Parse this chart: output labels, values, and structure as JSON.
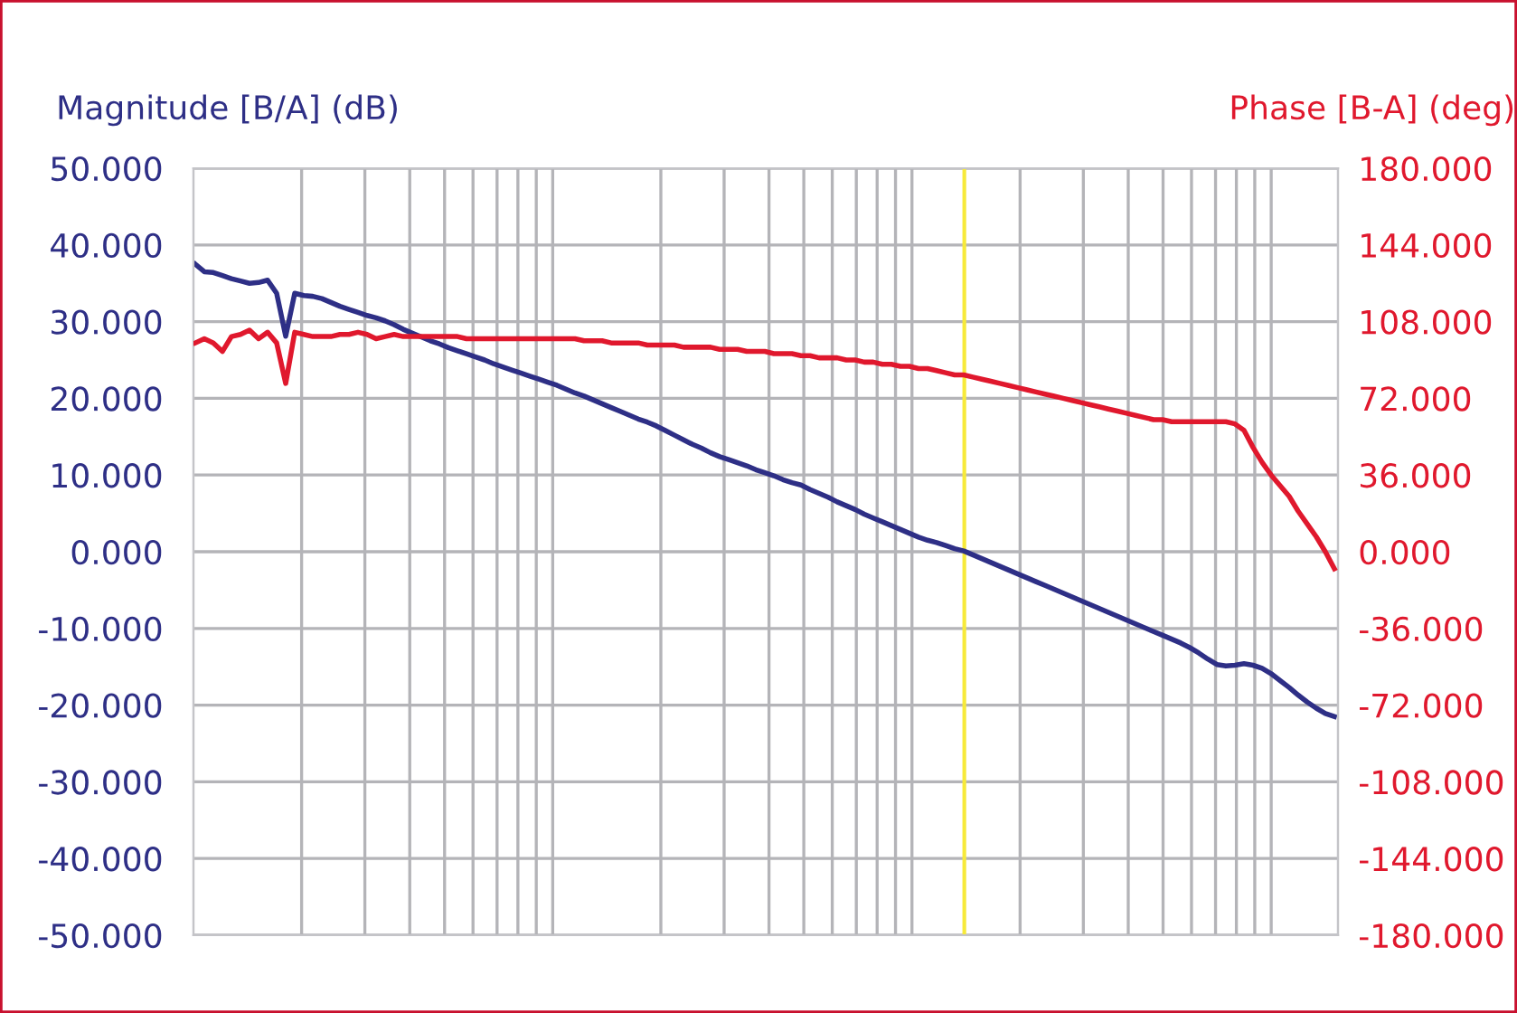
{
  "chart_data": {
    "type": "line",
    "ylabel": "Magnitude [B/A] (dB)",
    "y2label": "Phase [B-A] (deg)",
    "grid": "y",
    "legend": false,
    "categories": [
      null,
      null,
      null,
      null,
      null,
      null,
      null,
      null,
      null,
      null,
      null,
      null,
      null,
      null,
      null,
      null,
      null,
      null,
      null,
      null,
      null,
      null,
      null,
      null,
      null,
      null,
      null,
      null,
      null,
      null,
      null,
      null,
      null,
      null,
      null,
      null,
      null,
      null,
      null,
      null,
      null,
      null,
      null,
      null,
      null,
      null,
      null,
      null,
      null,
      null,
      null,
      null,
      null,
      null,
      null,
      null,
      null,
      null,
      null,
      null,
      null,
      null,
      null,
      null,
      null,
      null,
      null,
      null,
      null,
      null,
      null,
      null,
      null,
      null,
      null,
      null,
      null,
      null,
      null,
      null,
      null,
      null,
      null,
      null,
      null,
      null,
      null,
      null,
      null,
      null,
      null,
      null,
      null,
      null,
      null,
      null,
      null,
      null,
      null,
      null,
      null,
      null,
      null,
      null,
      null,
      null,
      null,
      null,
      null,
      null,
      null,
      null,
      null,
      null,
      null,
      null,
      null,
      null,
      null,
      null,
      null,
      null,
      null,
      null,
      null,
      null,
      null
    ],
    "ylim": [
      -50,
      50
    ],
    "yticks": [
      {
        "value": -50,
        "label": "-50.000"
      },
      {
        "value": -40,
        "label": "-40.000"
      },
      {
        "value": -30,
        "label": "-30.000"
      },
      {
        "value": -20,
        "label": "-20.000"
      },
      {
        "value": -10,
        "label": "-10.000"
      },
      {
        "value": 0,
        "label": "0.000"
      },
      {
        "value": 10,
        "label": "10.000"
      },
      {
        "value": 20,
        "label": "20.000"
      },
      {
        "value": 30,
        "label": "30.000"
      },
      {
        "value": 40,
        "label": "40.000"
      },
      {
        "value": 50,
        "label": "50.000"
      }
    ],
    "y2lim": [
      -180,
      180
    ],
    "y2ticks": [
      {
        "value": -180,
        "label": "-180.000"
      },
      {
        "value": -144,
        "label": "-144.000"
      },
      {
        "value": -108,
        "label": "-108.000"
      },
      {
        "value": -72,
        "label": "-72.000"
      },
      {
        "value": -36,
        "label": "-36.000"
      },
      {
        "value": 0,
        "label": "0.000"
      },
      {
        "value": 36,
        "label": "36.000"
      },
      {
        "value": 72,
        "label": "72.000"
      },
      {
        "value": 108,
        "label": "108.000"
      },
      {
        "value": 144,
        "label": "144.000"
      },
      {
        "value": 180,
        "label": "180.000"
      }
    ],
    "series": [
      {
        "color": "#2e2f86",
        "axis": "y",
        "values": [
          37.5,
          36.5,
          36.4,
          36.0,
          35.6,
          35.3,
          35.0,
          35.1,
          35.4,
          33.7,
          28.1,
          33.7,
          33.4,
          33.3,
          33.0,
          32.5,
          32.0,
          31.6,
          31.2,
          30.8,
          30.5,
          30.1,
          29.6,
          29.0,
          28.5,
          28.0,
          27.5,
          27.1,
          26.6,
          26.2,
          25.8,
          25.4,
          25.0,
          24.5,
          24.1,
          23.7,
          23.3,
          22.9,
          22.5,
          22.1,
          21.7,
          21.2,
          20.7,
          20.3,
          19.8,
          19.3,
          18.8,
          18.3,
          17.8,
          17.3,
          16.9,
          16.4,
          15.8,
          15.2,
          14.6,
          14.0,
          13.5,
          12.9,
          12.4,
          12.0,
          11.6,
          11.2,
          10.7,
          10.3,
          9.9,
          9.4,
          9.0,
          8.7,
          8.1,
          7.6,
          7.1,
          6.5,
          6.0,
          5.5,
          4.9,
          4.4,
          3.9,
          3.4,
          2.9,
          2.4,
          1.9,
          1.5,
          1.2,
          0.8,
          0.4,
          0.1,
          -0.4,
          -0.9,
          -1.4,
          -1.9,
          -2.4,
          -2.9,
          -3.4,
          -3.9,
          -4.4,
          -4.9,
          -5.4,
          -5.9,
          -6.4,
          -6.9,
          -7.4,
          -7.9,
          -8.4,
          -8.9,
          -9.4,
          -9.9,
          -10.4,
          -10.9,
          -11.4,
          -11.9,
          -12.5,
          -13.2,
          -14.0,
          -14.7,
          -14.9,
          -14.8,
          -14.6,
          -14.8,
          -15.2,
          -15.9,
          -16.8,
          -17.7,
          -18.7,
          -19.6,
          -20.4,
          -21.1,
          -21.5
        ]
      },
      {
        "color": "#e0182d",
        "axis": "y2",
        "values": [
          98,
          100,
          98,
          94,
          101,
          102,
          104,
          100,
          103,
          98,
          79,
          103,
          102,
          101,
          101,
          101,
          102,
          102,
          103,
          102,
          100,
          101,
          102,
          101,
          101,
          101,
          101,
          101,
          101,
          101,
          100,
          100,
          100,
          100,
          100,
          100,
          100,
          100,
          100,
          100,
          100,
          100,
          100,
          99,
          99,
          99,
          98,
          98,
          98,
          98,
          97,
          97,
          97,
          97,
          96,
          96,
          96,
          96,
          95,
          95,
          95,
          94,
          94,
          94,
          93,
          93,
          93,
          92,
          92,
          91,
          91,
          91,
          90,
          90,
          89,
          89,
          88,
          88,
          87,
          87,
          86,
          86,
          85,
          84,
          83,
          83,
          82,
          81,
          80,
          79,
          78,
          77,
          76,
          75,
          74,
          73,
          72,
          71,
          70,
          69,
          68,
          67,
          66,
          65,
          64,
          63,
          62,
          62,
          61,
          61,
          61,
          61,
          61,
          61,
          61,
          60,
          57,
          49,
          42,
          36,
          31,
          26,
          19,
          13,
          7,
          0,
          -8
        ]
      }
    ]
  }
}
